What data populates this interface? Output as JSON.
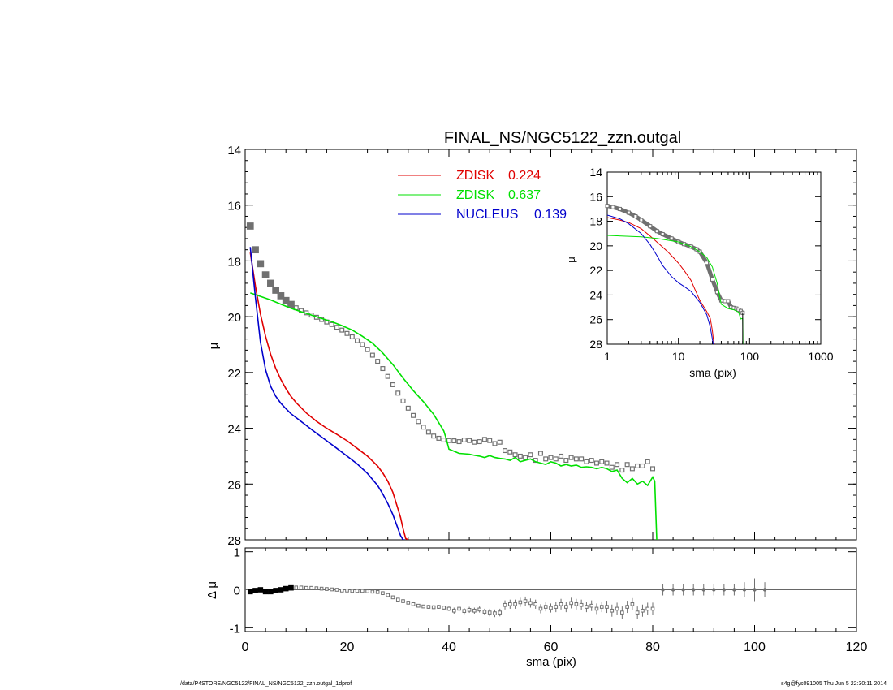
{
  "title": "FINAL_NS/NGC5122_zzn.outgal",
  "footer_left": "/data/P4STORE/NGC5122/FINAL_NS/NGC5122_zzn.outgal_1dprof",
  "footer_right": "s4g@fys091005  Thu Jun  5 22:30:11 2014",
  "colors": {
    "data": "#707070",
    "zdisk1": "#e00000",
    "zdisk2": "#00e000",
    "nucleus": "#0000cc",
    "axis": "#000000"
  },
  "chart_data": [
    {
      "id": "main",
      "type": "line",
      "xlabel": "",
      "ylabel": "μ",
      "xlim": [
        0,
        120
      ],
      "ylim": [
        28,
        14
      ],
      "y_inverted": true,
      "x_ticks": [
        0,
        20,
        40,
        60,
        80,
        100,
        120
      ],
      "y_ticks": [
        14,
        16,
        18,
        20,
        22,
        24,
        26,
        28
      ],
      "legend": [
        {
          "label": "ZDISK",
          "value": "0.224",
          "color": "#e00000"
        },
        {
          "label": "ZDISK",
          "value": "0.637",
          "color": "#00e000"
        },
        {
          "label": "NUCLEUS",
          "value": "0.139",
          "color": "#0000cc"
        }
      ],
      "legend_position": "top-center",
      "series": [
        {
          "key": "data",
          "style": "markers",
          "x": [
            1,
            2,
            3,
            4,
            5,
            6,
            7,
            8,
            9,
            10,
            11,
            12,
            13,
            14,
            15,
            16,
            17,
            18,
            19,
            20,
            21,
            22,
            23,
            24,
            25,
            26,
            27,
            28,
            29,
            30,
            31,
            32,
            33,
            34,
            35,
            36,
            37,
            38,
            39,
            40,
            41,
            42,
            43,
            44,
            45,
            46,
            47,
            48,
            49,
            50,
            51,
            52,
            53,
            54,
            55,
            56,
            57,
            58,
            59,
            60,
            61,
            62,
            63,
            64,
            65,
            66,
            67,
            68,
            69,
            70,
            71,
            72,
            73,
            74,
            75,
            76,
            77,
            78,
            79,
            80
          ],
          "y": [
            16.75,
            17.6,
            18.1,
            18.5,
            18.8,
            19.05,
            19.25,
            19.42,
            19.56,
            19.68,
            19.78,
            19.86,
            19.94,
            20.02,
            20.1,
            20.19,
            20.28,
            20.38,
            20.48,
            20.6,
            20.72,
            20.86,
            21.0,
            21.18,
            21.38,
            21.6,
            21.86,
            22.14,
            22.44,
            22.74,
            23.02,
            23.28,
            23.54,
            23.76,
            23.96,
            24.14,
            24.28,
            24.36,
            24.42,
            24.44,
            24.45,
            24.48,
            24.42,
            24.44,
            24.5,
            24.48,
            24.4,
            24.44,
            24.55,
            24.5,
            24.8,
            24.85,
            24.95,
            25.0,
            25.05,
            24.95,
            25.15,
            24.9,
            25.1,
            25.05,
            25.1,
            25.0,
            25.15,
            25.05,
            25.1,
            25.1,
            25.2,
            25.15,
            25.25,
            25.2,
            25.25,
            25.4,
            25.3,
            25.5,
            25.3,
            25.45,
            25.35,
            25.35,
            25.2,
            25.45
          ]
        },
        {
          "key": "zdisk1",
          "style": "line",
          "x": [
            1,
            2,
            3,
            4,
            5,
            6,
            7,
            8,
            9,
            10,
            12,
            14,
            16,
            18,
            20,
            22,
            24,
            26,
            27,
            28,
            29,
            30,
            30.5,
            31,
            31.5,
            32
          ],
          "y": [
            17.7,
            18.9,
            19.9,
            20.7,
            21.35,
            21.85,
            22.25,
            22.58,
            22.86,
            23.08,
            23.45,
            23.75,
            24.0,
            24.22,
            24.45,
            24.72,
            25.0,
            25.35,
            25.6,
            25.9,
            26.3,
            26.9,
            27.2,
            27.6,
            27.95,
            28.0
          ]
        },
        {
          "key": "zdisk2",
          "style": "line",
          "x": [
            1,
            3,
            5,
            7,
            9,
            11,
            13,
            15,
            17,
            19,
            21,
            23,
            25,
            27,
            29,
            31,
            33,
            35,
            37,
            39,
            39.5,
            40,
            42,
            44,
            45,
            46,
            47,
            48,
            49,
            50,
            51,
            52,
            53,
            54,
            55,
            56,
            57,
            58,
            59,
            60,
            61,
            62,
            63,
            64,
            65,
            66,
            67,
            68,
            69,
            70,
            71,
            72,
            73,
            74,
            75,
            76,
            77,
            78,
            79,
            80,
            80.4,
            80.6,
            80.8
          ],
          "y": [
            19.15,
            19.27,
            19.4,
            19.55,
            19.7,
            19.82,
            19.94,
            20.06,
            20.18,
            20.32,
            20.48,
            20.7,
            20.95,
            21.3,
            21.72,
            22.2,
            22.65,
            23.05,
            23.5,
            24.1,
            24.4,
            24.75,
            24.9,
            24.93,
            24.97,
            25.0,
            25.05,
            24.98,
            25.05,
            25.08,
            25.1,
            25.15,
            25.05,
            25.2,
            25.15,
            25.1,
            25.2,
            25.25,
            25.3,
            25.2,
            25.25,
            25.35,
            25.3,
            25.35,
            25.32,
            25.4,
            25.38,
            25.4,
            25.45,
            25.4,
            25.45,
            25.55,
            25.5,
            25.8,
            25.95,
            25.8,
            26.0,
            25.9,
            26.05,
            25.75,
            25.9,
            27.0,
            28.0
          ]
        },
        {
          "key": "nucleus",
          "style": "line",
          "x": [
            1,
            2,
            3,
            4,
            5,
            6,
            7,
            8,
            9,
            10,
            12,
            14,
            16,
            18,
            20,
            22,
            24,
            26,
            27,
            28,
            29,
            30,
            30.5,
            31,
            31.3
          ],
          "y": [
            17.5,
            19.3,
            20.9,
            21.9,
            22.5,
            22.85,
            23.1,
            23.3,
            23.48,
            23.62,
            23.9,
            24.18,
            24.45,
            24.72,
            25.0,
            25.28,
            25.62,
            26.05,
            26.35,
            26.7,
            27.1,
            27.6,
            27.85,
            28.0,
            28.0
          ]
        }
      ]
    },
    {
      "id": "inset",
      "type": "line",
      "xlabel": "sma (pix)",
      "ylabel": "μ",
      "x_scale": "log",
      "xlim": [
        1,
        1000
      ],
      "ylim": [
        28,
        14
      ],
      "y_inverted": true,
      "x_ticks": [
        1,
        10,
        100,
        1000
      ],
      "y_ticks": [
        14,
        16,
        18,
        20,
        22,
        24,
        26,
        28
      ],
      "series": [
        {
          "key": "data",
          "style": "markers",
          "x": [
            1,
            1.2,
            1.5,
            2,
            2.5,
            3,
            4,
            5,
            6,
            8,
            10,
            12,
            15,
            18,
            20,
            25,
            30,
            35,
            40,
            45,
            50,
            55,
            60,
            65,
            70,
            75,
            80
          ],
          "y": [
            16.75,
            16.85,
            17.0,
            17.3,
            17.6,
            17.9,
            18.4,
            18.8,
            19.05,
            19.4,
            19.68,
            19.86,
            20.06,
            20.28,
            20.48,
            21.38,
            22.74,
            23.76,
            24.44,
            24.5,
            24.5,
            25.0,
            25.05,
            25.1,
            25.2,
            25.3,
            25.45
          ]
        },
        {
          "key": "zdisk1",
          "style": "line",
          "x": [
            1,
            1.5,
            2,
            3,
            4,
            5,
            6,
            7,
            8,
            10,
            12,
            15,
            20,
            25,
            28,
            30,
            31,
            32
          ],
          "y": [
            17.7,
            17.9,
            18.1,
            18.6,
            19.2,
            19.7,
            20.1,
            20.45,
            20.8,
            21.4,
            22.0,
            22.8,
            24.45,
            25.35,
            25.9,
            26.9,
            27.6,
            28.0
          ]
        },
        {
          "key": "zdisk2",
          "style": "line",
          "x": [
            1,
            3,
            5,
            10,
            15,
            20,
            25,
            30,
            35,
            40,
            50,
            60,
            70,
            75,
            80,
            80.6,
            80.8
          ],
          "y": [
            19.15,
            19.27,
            19.4,
            19.68,
            20.06,
            20.48,
            20.95,
            21.72,
            23.05,
            24.75,
            25.1,
            25.2,
            25.4,
            25.95,
            25.9,
            27.0,
            28.0
          ]
        },
        {
          "key": "nucleus",
          "style": "line",
          "x": [
            1,
            1.5,
            2,
            3,
            4,
            5,
            6,
            8,
            10,
            12,
            15,
            20,
            25,
            28,
            30,
            31
          ],
          "y": [
            17.5,
            17.8,
            18.2,
            19.0,
            19.9,
            20.8,
            21.6,
            22.5,
            23.0,
            23.3,
            23.7,
            24.6,
            25.6,
            26.6,
            27.6,
            28.0
          ]
        }
      ]
    },
    {
      "id": "residual",
      "type": "scatter",
      "xlabel": "sma (pix)",
      "ylabel": "Δ μ",
      "xlim": [
        0,
        120
      ],
      "ylim": [
        -1.1,
        1.1
      ],
      "x_ticks": [
        0,
        20,
        40,
        60,
        80,
        100,
        120
      ],
      "y_ticks": [
        -1,
        0,
        1
      ],
      "series": [
        {
          "key": "data",
          "style": "markers",
          "x": [
            1,
            2,
            3,
            4,
            5,
            6,
            7,
            8,
            9,
            10,
            11,
            12,
            13,
            14,
            15,
            16,
            17,
            18,
            19,
            20,
            21,
            22,
            23,
            24,
            25,
            26,
            27,
            28,
            29,
            30,
            31,
            32,
            33,
            34,
            35,
            36,
            37,
            38,
            39,
            40,
            41,
            42,
            43,
            44,
            45,
            46,
            47,
            48,
            49,
            50,
            51,
            52,
            53,
            54,
            55,
            56,
            57,
            58,
            59,
            60,
            61,
            62,
            63,
            64,
            65,
            66,
            67,
            68,
            69,
            70,
            71,
            72,
            73,
            74,
            75,
            76,
            77,
            78,
            79,
            80
          ],
          "y": [
            -0.05,
            -0.02,
            0.0,
            -0.05,
            -0.05,
            -0.02,
            0.0,
            0.03,
            0.05,
            0.06,
            0.06,
            0.05,
            0.05,
            0.04,
            0.03,
            0.02,
            0.01,
            0.0,
            -0.02,
            -0.02,
            -0.03,
            -0.03,
            -0.03,
            -0.04,
            -0.05,
            -0.06,
            -0.09,
            -0.14,
            -0.2,
            -0.26,
            -0.3,
            -0.34,
            -0.38,
            -0.42,
            -0.44,
            -0.45,
            -0.46,
            -0.45,
            -0.47,
            -0.5,
            -0.55,
            -0.5,
            -0.56,
            -0.53,
            -0.55,
            -0.52,
            -0.58,
            -0.6,
            -0.62,
            -0.6,
            -0.4,
            -0.38,
            -0.38,
            -0.33,
            -0.3,
            -0.35,
            -0.38,
            -0.5,
            -0.45,
            -0.48,
            -0.45,
            -0.38,
            -0.45,
            -0.35,
            -0.38,
            -0.4,
            -0.45,
            -0.42,
            -0.5,
            -0.45,
            -0.45,
            -0.55,
            -0.5,
            -0.6,
            -0.45,
            -0.38,
            -0.6,
            -0.55,
            -0.5,
            -0.5
          ],
          "err": [
            0.03,
            0.03,
            0.03,
            0.03,
            0.03,
            0.03,
            0.03,
            0.03,
            0.03,
            0.03,
            0.03,
            0.03,
            0.03,
            0.03,
            0.03,
            0.03,
            0.03,
            0.03,
            0.03,
            0.03,
            0.03,
            0.03,
            0.03,
            0.03,
            0.03,
            0.03,
            0.03,
            0.03,
            0.03,
            0.03,
            0.03,
            0.03,
            0.04,
            0.04,
            0.04,
            0.05,
            0.05,
            0.05,
            0.05,
            0.06,
            0.08,
            0.08,
            0.08,
            0.08,
            0.08,
            0.08,
            0.08,
            0.1,
            0.1,
            0.1,
            0.12,
            0.12,
            0.12,
            0.12,
            0.12,
            0.12,
            0.12,
            0.12,
            0.12,
            0.12,
            0.14,
            0.14,
            0.14,
            0.14,
            0.14,
            0.14,
            0.14,
            0.14,
            0.14,
            0.14,
            0.16,
            0.16,
            0.16,
            0.16,
            0.16,
            0.16,
            0.16,
            0.16,
            0.16,
            0.16
          ]
        },
        {
          "key": "beyond",
          "style": "errorbars",
          "x": [
            82,
            84,
            86,
            88,
            90,
            92,
            94,
            96,
            98,
            100,
            102
          ],
          "y": [
            0,
            0,
            0,
            0,
            0,
            0,
            0,
            0,
            0,
            0,
            0
          ],
          "err": [
            0.15,
            0.15,
            0.15,
            0.15,
            0.15,
            0.15,
            0.15,
            0.15,
            0.2,
            0.3,
            0.2
          ]
        }
      ]
    }
  ]
}
